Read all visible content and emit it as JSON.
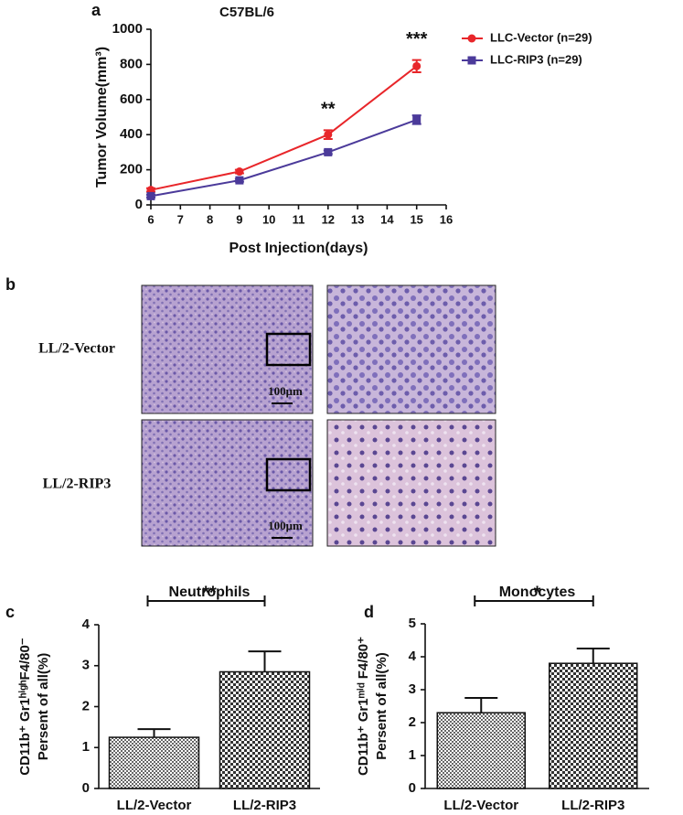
{
  "panel_labels": [
    "a",
    "b",
    "c",
    "d"
  ],
  "histology": {
    "rows": [
      "LL/2-Vector",
      "LL/2-RIP3"
    ],
    "scale_bar": "100μm"
  },
  "chart_data": [
    {
      "type": "line",
      "title": "C57BL/6",
      "xlabel": "Post Injection(days)",
      "ylabel": "Tumor Volume(mm³)",
      "x": [
        6,
        9,
        12,
        15
      ],
      "series": [
        {
          "name": "LLC-Vector (n=29)",
          "color": "#e8262a",
          "marker": "circle",
          "values": [
            85,
            190,
            400,
            790
          ],
          "errors": [
            10,
            10,
            25,
            35
          ]
        },
        {
          "name": "LLC-RIP3 (n=29)",
          "color": "#4b3a9a",
          "marker": "square",
          "values": [
            50,
            140,
            300,
            485
          ],
          "errors": [
            8,
            8,
            10,
            25
          ]
        }
      ],
      "annotations": [
        {
          "text": "**",
          "x": 12
        },
        {
          "text": "***",
          "x": 15
        }
      ],
      "xlim": [
        6,
        16
      ],
      "xticks": [
        6,
        7,
        8,
        9,
        10,
        11,
        12,
        13,
        14,
        15,
        16
      ],
      "ylim": [
        0,
        1000
      ],
      "yticks": [
        0,
        200,
        400,
        600,
        800,
        1000
      ],
      "legend": "upper right"
    },
    {
      "type": "bar",
      "title": "Neutrophils",
      "ylabel": [
        "CD11b⁺ Gr1ʰⁱᵍʰF4/80⁻",
        "Persent of all(%)"
      ],
      "categories": [
        "LL/2-Vector",
        "LL/2-RIP3"
      ],
      "values": [
        1.25,
        2.85
      ],
      "errors": [
        0.2,
        0.5
      ],
      "annotation": "**",
      "ylim": [
        0,
        4
      ],
      "yticks": [
        0,
        1,
        2,
        3,
        4
      ]
    },
    {
      "type": "bar",
      "title": "Monocytes",
      "ylabel": [
        "CD11b⁺ Gr1ᵐⁱᵈ F4/80⁺",
        "Persent of all(%)"
      ],
      "categories": [
        "LL/2-Vector",
        "LL/2-RIP3"
      ],
      "values": [
        2.3,
        3.8
      ],
      "errors": [
        0.45,
        0.45
      ],
      "annotation": "*",
      "ylim": [
        0,
        5
      ],
      "yticks": [
        0,
        1,
        2,
        3,
        4,
        5
      ]
    }
  ]
}
